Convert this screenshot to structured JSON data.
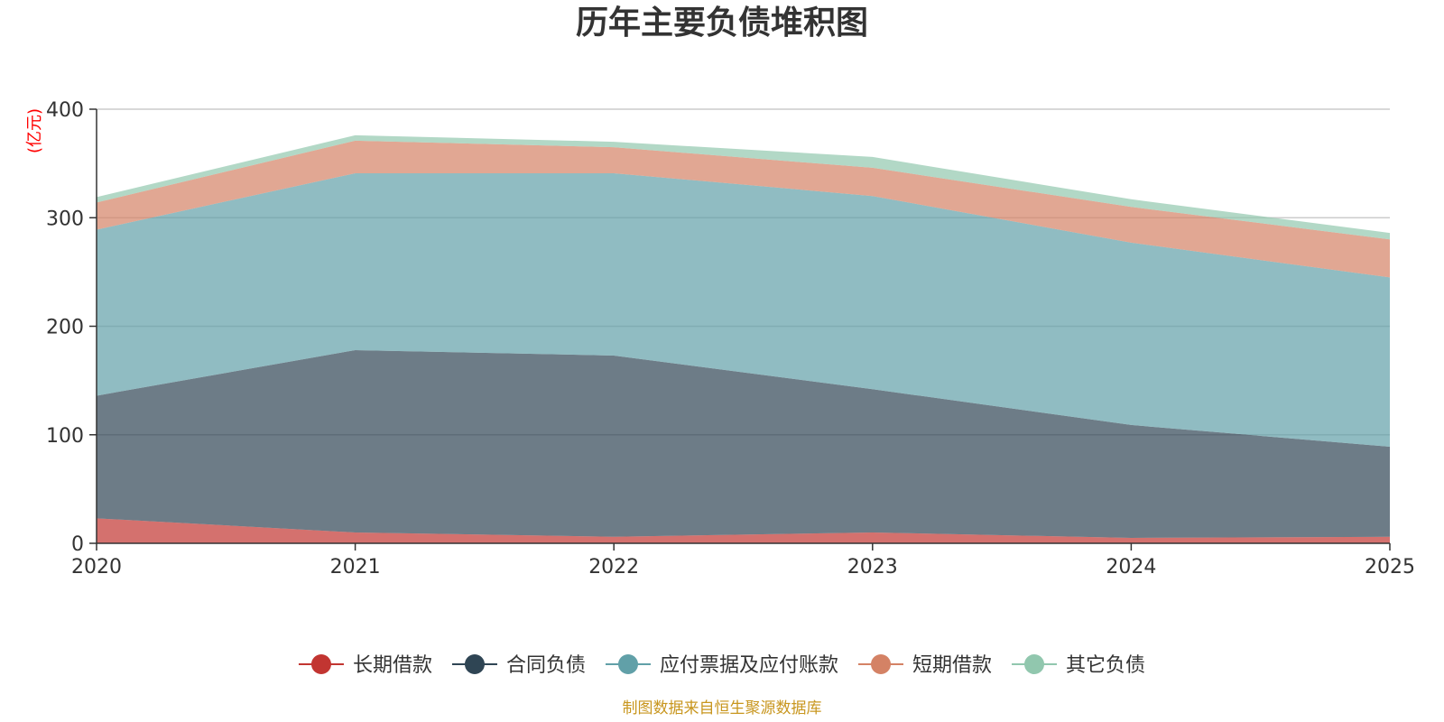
{
  "colors": {
    "long_term_loans": "#c23531",
    "contract_liabilities": "#2f4554",
    "payables": "#61a0a8",
    "short_term_loans": "#d48265",
    "other_liabilities": "#91c7ae",
    "unit": "#ff0000",
    "source": "#c8961e"
  },
  "chart_data": {
    "type": "area",
    "stacked": true,
    "title": "历年主要负债堆积图",
    "unit_label": "(亿元)",
    "x": [
      "2020",
      "2021",
      "2022",
      "2023",
      "2024",
      "2025"
    ],
    "ylim": [
      0,
      400
    ],
    "yticks": [
      "0",
      "100",
      "200",
      "300",
      "400"
    ],
    "grid": true,
    "legend_position": "bottom",
    "series": [
      {
        "key": "long_term_loans",
        "name": "长期借款",
        "values": [
          23,
          10,
          6,
          10,
          5,
          6
        ]
      },
      {
        "key": "contract_liabilities",
        "name": "合同负债",
        "values": [
          113,
          168,
          167,
          132,
          104,
          83
        ]
      },
      {
        "key": "payables",
        "name": "应付票据及应付账款",
        "values": [
          153,
          163,
          168,
          178,
          168,
          156
        ]
      },
      {
        "key": "short_term_loans",
        "name": "短期借款",
        "values": [
          25,
          30,
          24,
          26,
          33,
          35
        ]
      },
      {
        "key": "other_liabilities",
        "name": "其它负债",
        "values": [
          5,
          5,
          5,
          10,
          7,
          6
        ]
      }
    ]
  },
  "source_text": "制图数据来自恒生聚源数据库"
}
